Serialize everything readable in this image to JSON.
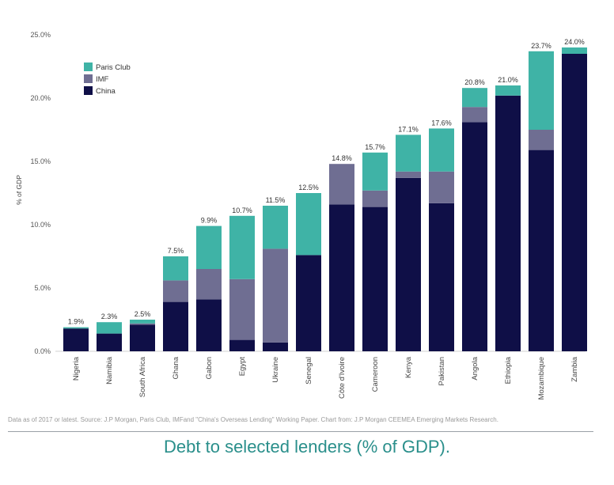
{
  "chart_data": {
    "type": "bar",
    "stacked": true,
    "ylabel": "% of GDP",
    "ylim": [
      0,
      25
    ],
    "yticks": [
      "0.0%",
      "5.0%",
      "10.0%",
      "15.0%",
      "20.0%",
      "25.0%"
    ],
    "grid": false,
    "legend_position": "top-left",
    "categories": [
      "Nigeria",
      "Namibia",
      "South Africa",
      "Ghana",
      "Gabon",
      "Egypt",
      "Ukraine",
      "Senegal",
      "Côte d'Ivoire",
      "Cameroon",
      "Kenya",
      "Pakistan",
      "Angola",
      "Ethiopia",
      "Mozambique",
      "Zambia"
    ],
    "totals": [
      "1.9%",
      "2.3%",
      "2.5%",
      "7.5%",
      "9.9%",
      "10.7%",
      "11.5%",
      "12.5%",
      "14.8%",
      "15.7%",
      "17.1%",
      "17.6%",
      "20.8%",
      "21.0%",
      "23.7%",
      "24.0%"
    ],
    "series": [
      {
        "name": "China",
        "color": "#0f0f47",
        "values": [
          1.8,
          1.4,
          2.1,
          3.9,
          4.1,
          0.9,
          0.7,
          7.6,
          11.6,
          11.4,
          13.7,
          11.7,
          18.1,
          20.2,
          15.9,
          23.5
        ]
      },
      {
        "name": "IMF",
        "color": "#6f6e92",
        "values": [
          0.0,
          0.0,
          0.1,
          1.7,
          2.4,
          4.8,
          7.4,
          0.0,
          3.2,
          1.3,
          0.5,
          2.5,
          1.2,
          0.0,
          1.6,
          0.0
        ]
      },
      {
        "name": "Paris Club",
        "color": "#3fb3a6",
        "values": [
          0.1,
          0.9,
          0.3,
          1.9,
          3.4,
          5.0,
          3.4,
          4.9,
          0.0,
          3.0,
          2.9,
          3.4,
          1.5,
          0.8,
          6.2,
          0.5
        ]
      }
    ],
    "legend": [
      {
        "name": "Paris Club",
        "color": "#3fb3a6"
      },
      {
        "name": "IMF",
        "color": "#6f6e92"
      },
      {
        "name": "China",
        "color": "#0f0f47"
      }
    ]
  },
  "source_note": "Data as of 2017 or latest. Source: J.P Morgan, Paris Club, IMFand \"China's Overseas Lending\" Working Paper. Chart from: J.P Morgan CEEMEA Emerging Markets Research.",
  "caption": "Debt to selected lenders (% of GDP)."
}
